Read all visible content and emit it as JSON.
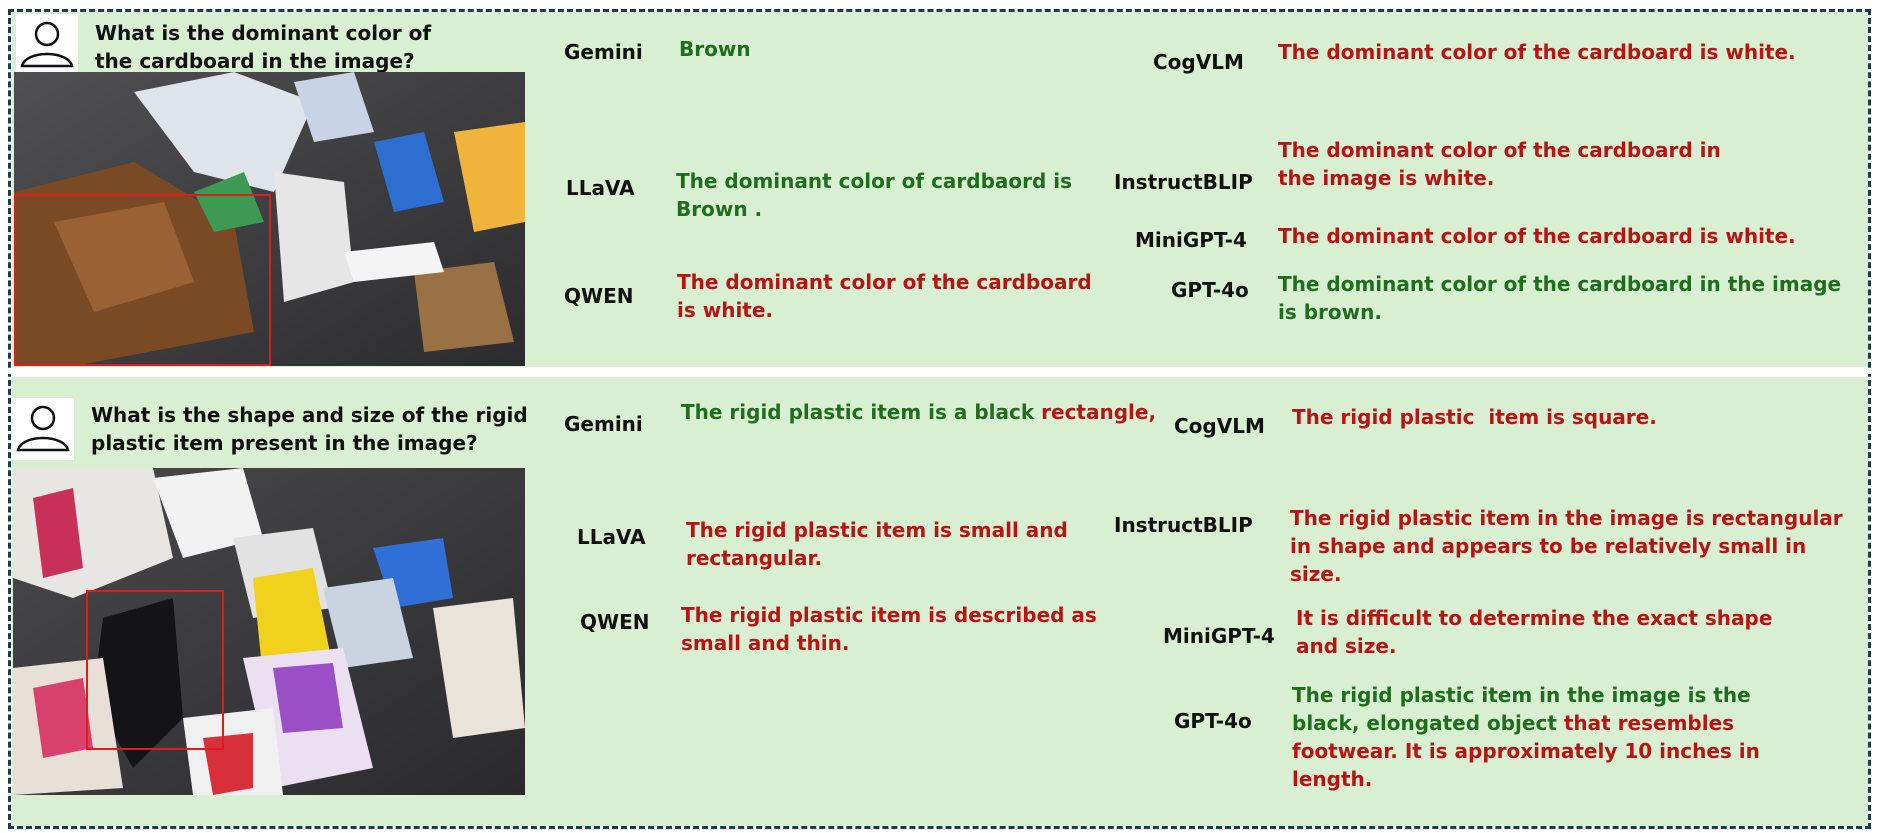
{
  "colors": {
    "correct": "#1e6e1e",
    "incorrect": "#b81414",
    "panel_bg": "#d9efd2",
    "bbox": "#e11a1a"
  },
  "icons": {
    "avatar": "user-avatar-icon"
  },
  "q1": {
    "question": "What is the dominant color of the cardboard in the image?",
    "answers": {
      "gemini": {
        "model": "Gemini",
        "text": "Brown"
      },
      "llava": {
        "model": "LLaVA",
        "text": "The dominant color of cardbaord is Brown ."
      },
      "qwen": {
        "model": "QWEN",
        "text": "The dominant color of the cardboard is white."
      },
      "cogvlm": {
        "model": "CogVLM",
        "text": "The dominant color of the cardboard is white."
      },
      "instructblip": {
        "model": "InstructBLIP",
        "text": "The dominant color of the cardboard in the image is white."
      },
      "minigpt4": {
        "model": "MiniGPT-4",
        "text": "The dominant color of the cardboard is white."
      },
      "gpt4o": {
        "model": "GPT-4o",
        "text": "The dominant color of the cardboard in the image is brown."
      }
    }
  },
  "q2": {
    "question": "What is the shape  and size of the rigid plastic item present in the image?",
    "answers": {
      "gemini": {
        "model": "Gemini",
        "text_correct": "The rigid plastic item is a black ",
        "text_incorrect": "rectangle,"
      },
      "llava": {
        "model": "LLaVA",
        "text": "The rigid plastic item is small and rectangular."
      },
      "qwen": {
        "model": "QWEN",
        "text": "The rigid plastic item is described as small and thin."
      },
      "cogvlm": {
        "model": "CogVLM",
        "text": "The rigid plastic  item is square."
      },
      "instructblip": {
        "model": "InstructBLIP",
        "text": "The rigid plastic item in the image is rectangular in shape and appears to be relatively small in size."
      },
      "minigpt4": {
        "model": "MiniGPT-4",
        "text": "It is difficult to determine the exact shape and size."
      },
      "gpt4o": {
        "model": "GPT-4o",
        "text_correct": "The rigid plastic item in the image is the black, elongated object ",
        "text_incorrect": "that resembles footwear. It is approximately 10 inches in length."
      }
    }
  }
}
